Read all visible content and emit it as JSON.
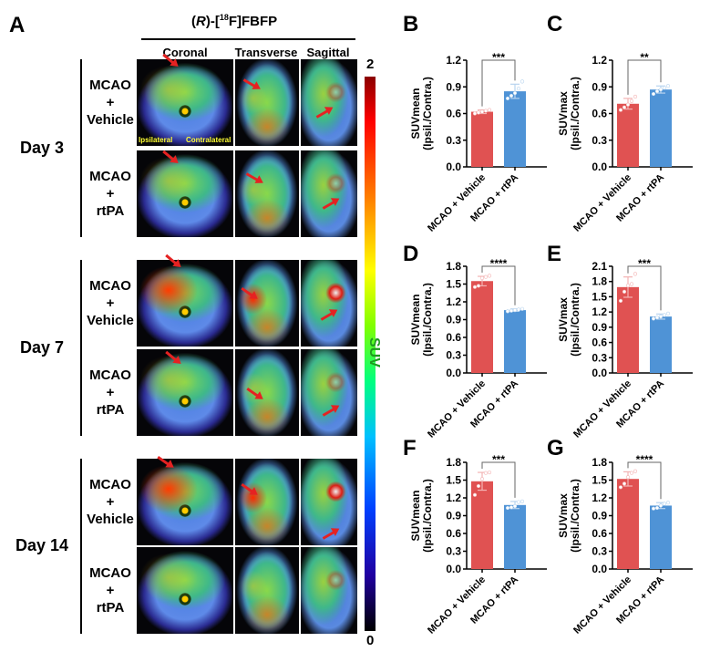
{
  "panel_a": {
    "letter": "A",
    "tracer_prefix": "(",
    "tracer_italic": "R",
    "tracer_mid": ")-[",
    "tracer_sup": "18",
    "tracer_suffix": "F]FBFP",
    "columns": [
      "Coronal",
      "Transverse",
      "Sagittal"
    ],
    "days": [
      {
        "label": "Day 3",
        "rows": [
          {
            "l1": "MCAO",
            "l2": "+",
            "l3": "Vehicle"
          },
          {
            "l1": "MCAO",
            "l2": "+",
            "l3": "rtPA"
          }
        ]
      },
      {
        "label": "Day 7",
        "rows": [
          {
            "l1": "MCAO",
            "l2": "+",
            "l3": "Vehicle"
          },
          {
            "l1": "MCAO",
            "l2": "+",
            "l3": "rtPA"
          }
        ]
      },
      {
        "label": "Day 14",
        "rows": [
          {
            "l1": "MCAO",
            "l2": "+",
            "l3": "Vehicle"
          },
          {
            "l1": "MCAO",
            "l2": "+",
            "l3": "rtPA"
          }
        ]
      }
    ],
    "ipsilateral": "Ipsilateral",
    "contralateral": "Contralateral",
    "colorbar": {
      "label": "SUV",
      "max": "2",
      "min": "0"
    }
  },
  "colors": {
    "vehicle": "#e05252",
    "rtpa": "#4f93d6",
    "vehicle_light": "#f3b3b3",
    "rtpa_light": "#b8d4ef"
  },
  "chart_data": [
    {
      "type": "bar",
      "letter": "B",
      "ylabel": "SUVmean",
      "ylabel2": "(Ipsil./Contra.)",
      "categories": [
        "MCAO + Vehicle",
        "MCAO + rtPA"
      ],
      "values": [
        0.62,
        0.85
      ],
      "errors": [
        0.02,
        0.08
      ],
      "points": [
        [
          0.6,
          0.61,
          0.62,
          0.63,
          0.64
        ],
        [
          0.77,
          0.8,
          0.83,
          0.88,
          0.96
        ]
      ],
      "ylim": [
        0,
        1.2
      ],
      "yticks": [
        "0.0",
        "0.3",
        "0.6",
        "0.9",
        "1.2"
      ],
      "significance": "***"
    },
    {
      "type": "bar",
      "letter": "C",
      "ylabel": "SUVmax",
      "ylabel2": "(Ipsil./Contra.)",
      "categories": [
        "MCAO + Vehicle",
        "MCAO + rtPA"
      ],
      "values": [
        0.71,
        0.87
      ],
      "errors": [
        0.06,
        0.04
      ],
      "points": [
        [
          0.64,
          0.67,
          0.7,
          0.74,
          0.79
        ],
        [
          0.82,
          0.85,
          0.87,
          0.89,
          0.91
        ]
      ],
      "ylim": [
        0,
        1.2
      ],
      "yticks": [
        "0.0",
        "0.3",
        "0.6",
        "0.9",
        "1.2"
      ],
      "significance": "**"
    },
    {
      "type": "bar",
      "letter": "D",
      "ylabel": "SUVmean",
      "ylabel2": "(Ipsil./Contra.)",
      "categories": [
        "MCAO + Vehicle",
        "MCAO + rtPA"
      ],
      "values": [
        1.55,
        1.06
      ],
      "errors": [
        0.08,
        0.02
      ],
      "points": [
        [
          1.45,
          1.47,
          1.6,
          1.62,
          1.64
        ],
        [
          1.04,
          1.05,
          1.06,
          1.07,
          1.08
        ]
      ],
      "ylim": [
        0,
        1.8
      ],
      "yticks": [
        "0.0",
        "0.3",
        "0.6",
        "0.9",
        "1.2",
        "1.5",
        "1.8"
      ],
      "significance": "****"
    },
    {
      "type": "bar",
      "letter": "E",
      "ylabel": "SUVmax",
      "ylabel2": "(Ipsil./Contra.)",
      "categories": [
        "MCAO + Vehicle",
        "MCAO + rtPA"
      ],
      "values": [
        1.69,
        1.11
      ],
      "errors": [
        0.2,
        0.05
      ],
      "points": [
        [
          1.42,
          1.6,
          1.72,
          1.75,
          1.95
        ],
        [
          1.07,
          1.09,
          1.11,
          1.14,
          1.17
        ]
      ],
      "ylim": [
        0,
        2.1
      ],
      "yticks": [
        "0.0",
        "0.3",
        "0.6",
        "0.9",
        "1.2",
        "1.5",
        "1.8",
        "2.1"
      ],
      "significance": "***"
    },
    {
      "type": "bar",
      "letter": "F",
      "ylabel": "SUVmean",
      "ylabel2": "(Ipsil./Contra.)",
      "categories": [
        "MCAO + Vehicle",
        "MCAO + rtPA"
      ],
      "values": [
        1.48,
        1.08
      ],
      "errors": [
        0.15,
        0.06
      ],
      "points": [
        [
          1.25,
          1.4,
          1.52,
          1.62,
          1.63
        ],
        [
          1.03,
          1.04,
          1.06,
          1.13,
          1.14
        ]
      ],
      "ylim": [
        0,
        1.8
      ],
      "yticks": [
        "0.0",
        "0.3",
        "0.6",
        "0.9",
        "1.2",
        "1.5",
        "1.8"
      ],
      "significance": "***"
    },
    {
      "type": "bar",
      "letter": "G",
      "ylabel": "SUVmax",
      "ylabel2": "(Ipsil./Contra.)",
      "categories": [
        "MCAO + Vehicle",
        "MCAO + rtPA"
      ],
      "values": [
        1.52,
        1.07
      ],
      "errors": [
        0.12,
        0.05
      ],
      "points": [
        [
          1.38,
          1.44,
          1.55,
          1.62,
          1.65
        ],
        [
          1.02,
          1.03,
          1.07,
          1.1,
          1.12
        ]
      ],
      "ylim": [
        0,
        1.8
      ],
      "yticks": [
        "0.0",
        "0.3",
        "0.6",
        "0.9",
        "1.2",
        "1.5",
        "1.8"
      ],
      "significance": "****"
    }
  ]
}
